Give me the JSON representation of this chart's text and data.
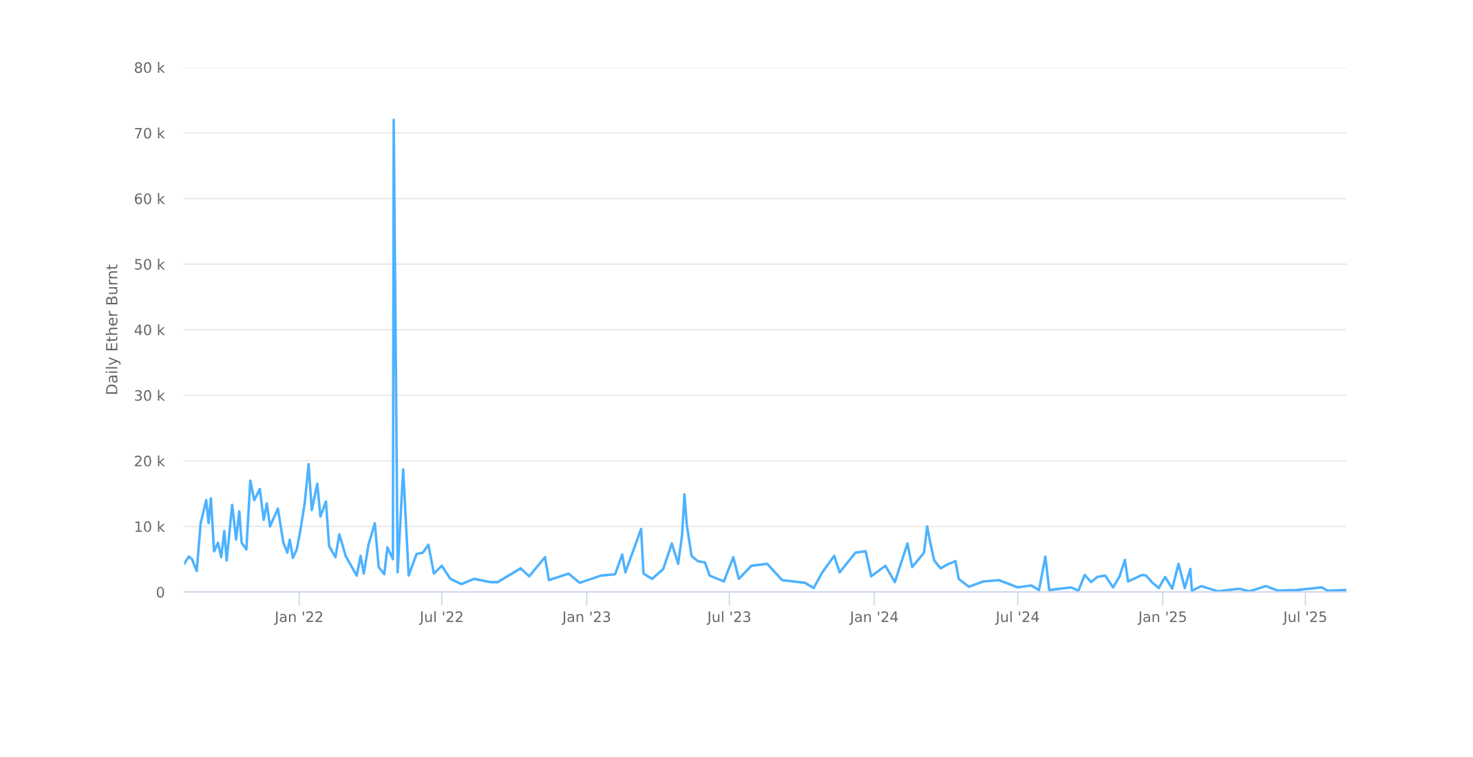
{
  "chart_data": {
    "type": "line",
    "ylabel": "Daily Ether Burnt",
    "grid": "y",
    "marker": "none",
    "line_style": "solid",
    "xlim": [
      "2021-08-08",
      "2025-08-22"
    ],
    "xticks": [
      {
        "value": "2022-01-01",
        "label": "Jan '22"
      },
      {
        "value": "2022-07-01",
        "label": "Jul '22"
      },
      {
        "value": "2023-01-01",
        "label": "Jan '23"
      },
      {
        "value": "2023-07-01",
        "label": "Jul '23"
      },
      {
        "value": "2024-01-01",
        "label": "Jan '24"
      },
      {
        "value": "2024-07-01",
        "label": "Jul '24"
      },
      {
        "value": "2025-01-01",
        "label": "Jan '25"
      },
      {
        "value": "2025-07-01",
        "label": "Jul '25"
      }
    ],
    "ylim": [
      0,
      80000
    ],
    "yticks": [
      {
        "value": 0,
        "label": "0"
      },
      {
        "value": 10000,
        "label": "10 k"
      },
      {
        "value": 20000,
        "label": "20 k"
      },
      {
        "value": 30000,
        "label": "30 k"
      },
      {
        "value": 40000,
        "label": "40 k"
      },
      {
        "value": 50000,
        "label": "50 k"
      },
      {
        "value": 60000,
        "label": "60 k"
      },
      {
        "value": 70000,
        "label": "70 k"
      },
      {
        "value": 80000,
        "label": "80 k"
      }
    ],
    "series": [
      {
        "color": "#4db2ff",
        "x": [
          "2021-08-08",
          "2021-08-14",
          "2021-08-18",
          "2021-08-24",
          "2021-08-29",
          "2021-09-05",
          "2021-09-08",
          "2021-09-11",
          "2021-09-15",
          "2021-09-20",
          "2021-09-24",
          "2021-09-28",
          "2021-10-01",
          "2021-10-08",
          "2021-10-13",
          "2021-10-17",
          "2021-10-20",
          "2021-10-26",
          "2021-10-31",
          "2021-11-05",
          "2021-11-12",
          "2021-11-17",
          "2021-11-21",
          "2021-11-25",
          "2021-12-05",
          "2021-12-12",
          "2021-12-17",
          "2021-12-20",
          "2021-12-24",
          "2021-12-29",
          "2022-01-02",
          "2022-01-08",
          "2022-01-13",
          "2022-01-17",
          "2022-01-24",
          "2022-01-28",
          "2022-02-04",
          "2022-02-08",
          "2022-02-16",
          "2022-02-21",
          "2022-03-01",
          "2022-03-08",
          "2022-03-15",
          "2022-03-20",
          "2022-03-24",
          "2022-03-30",
          "2022-04-07",
          "2022-04-12",
          "2022-04-19",
          "2022-04-23",
          "2022-04-30",
          "2022-05-01",
          "2022-05-06",
          "2022-05-13",
          "2022-05-20",
          "2022-05-30",
          "2022-06-07",
          "2022-06-14",
          "2022-06-21",
          "2022-07-01",
          "2022-07-12",
          "2022-07-26",
          "2022-08-11",
          "2022-09-01",
          "2022-09-10",
          "2022-10-09",
          "2022-10-20",
          "2022-11-09",
          "2022-11-14",
          "2022-12-09",
          "2022-12-23",
          "2023-01-19",
          "2023-02-06",
          "2023-02-15",
          "2023-02-19",
          "2023-03-11",
          "2023-03-14",
          "2023-03-25",
          "2023-04-08",
          "2023-04-19",
          "2023-04-27",
          "2023-05-02",
          "2023-05-05",
          "2023-05-08",
          "2023-05-14",
          "2023-05-22",
          "2023-05-31",
          "2023-06-06",
          "2023-06-24",
          "2023-07-06",
          "2023-07-13",
          "2023-07-29",
          "2023-08-18",
          "2023-09-06",
          "2023-10-05",
          "2023-10-16",
          "2023-10-27",
          "2023-11-11",
          "2023-11-18",
          "2023-12-08",
          "2023-12-21",
          "2023-12-28",
          "2024-01-15",
          "2024-01-27",
          "2024-02-12",
          "2024-02-18",
          "2024-03-04",
          "2024-03-08",
          "2024-03-12",
          "2024-03-17",
          "2024-03-25",
          "2024-04-03",
          "2024-04-13",
          "2024-04-17",
          "2024-04-30",
          "2024-05-18",
          "2024-06-07",
          "2024-07-01",
          "2024-07-18",
          "2024-07-28",
          "2024-08-05",
          "2024-08-10",
          "2024-09-07",
          "2024-09-16",
          "2024-09-24",
          "2024-10-02",
          "2024-10-10",
          "2024-10-20",
          "2024-10-30",
          "2024-11-07",
          "2024-11-14",
          "2024-11-18",
          "2024-12-06",
          "2024-12-11",
          "2024-12-19",
          "2024-12-27",
          "2025-01-04",
          "2025-01-13",
          "2025-01-21",
          "2025-01-29",
          "2025-02-05",
          "2025-02-07",
          "2025-02-19",
          "2025-03-12",
          "2025-04-08",
          "2025-04-21",
          "2025-05-12",
          "2025-05-27",
          "2025-06-20",
          "2025-07-22",
          "2025-07-29",
          "2025-08-22"
        ],
        "values": [
          4300,
          5400,
          5000,
          3200,
          10500,
          14000,
          10500,
          14300,
          6200,
          7500,
          5300,
          9300,
          4800,
          13300,
          8000,
          12300,
          7500,
          6500,
          17000,
          14000,
          15700,
          11000,
          13500,
          10000,
          12700,
          7500,
          6000,
          8000,
          5200,
          6500,
          9000,
          13500,
          19500,
          12500,
          16500,
          11500,
          13800,
          7000,
          5300,
          8800,
          5500,
          4000,
          2500,
          5500,
          2800,
          7200,
          10500,
          3800,
          2700,
          6800,
          5000,
          72000,
          3000,
          18700,
          2500,
          5800,
          6000,
          7200,
          2800,
          4000,
          2000,
          1200,
          2000,
          1500,
          1500,
          3600,
          2400,
          5300,
          1800,
          2800,
          1400,
          2500,
          2700,
          5700,
          3000,
          9600,
          2800,
          2000,
          3500,
          7400,
          4300,
          8700,
          14900,
          10200,
          5500,
          4700,
          4500,
          2500,
          1600,
          5300,
          2000,
          4000,
          4300,
          1800,
          1400,
          600,
          3000,
          5500,
          3000,
          6000,
          6200,
          2400,
          4000,
          1500,
          7400,
          3800,
          6000,
          10000,
          7500,
          4800,
          3600,
          4200,
          4700,
          2000,
          800,
          1600,
          1800,
          700,
          1000,
          300,
          5400,
          300,
          700,
          200,
          2600,
          1500,
          2300,
          2500,
          700,
          2300,
          4900,
          1600,
          2600,
          2500,
          1400,
          600,
          2300,
          500,
          4300,
          600,
          3500,
          200,
          900,
          100,
          500,
          100,
          900,
          200,
          300,
          700,
          200,
          300
        ]
      }
    ]
  }
}
